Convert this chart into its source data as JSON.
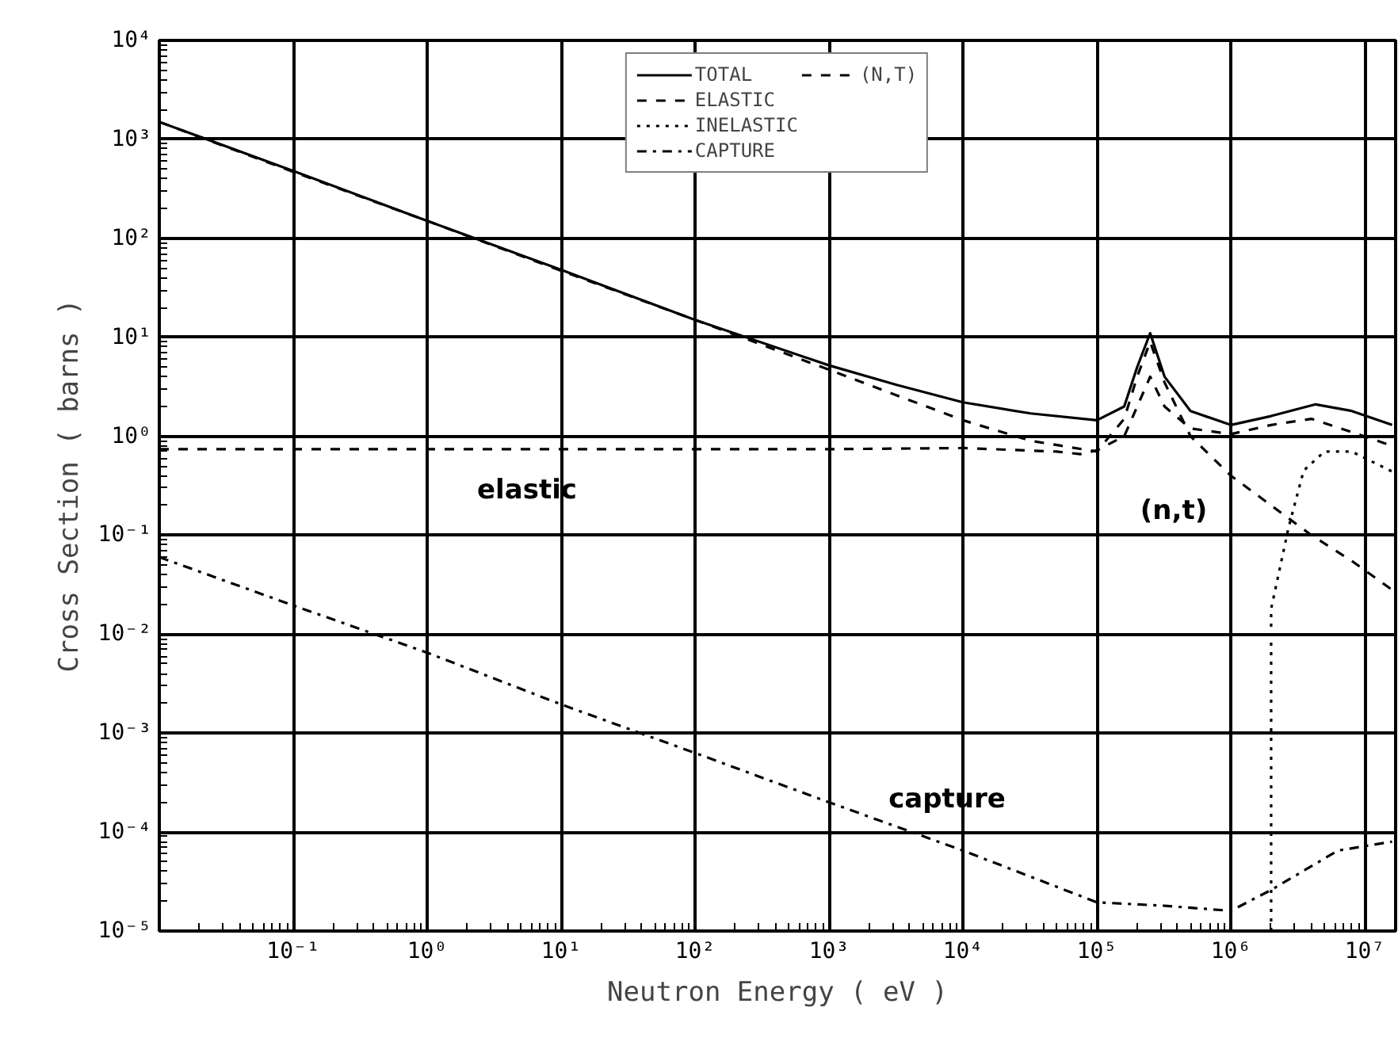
{
  "chart_data": {
    "type": "line",
    "xlabel": "Neutron Energy ( eV )",
    "ylabel": "Cross Section ( barns )",
    "log": "xy",
    "grid": true,
    "legend": "top",
    "xlim": [
      0.01,
      17000000
    ],
    "ylim": [
      1e-05,
      10000
    ],
    "xticks": [
      {
        "value": 0.1,
        "label": "10⁻¹"
      },
      {
        "value": 1,
        "label": "10⁰"
      },
      {
        "value": 10,
        "label": "10¹"
      },
      {
        "value": 100,
        "label": "10²"
      },
      {
        "value": 1000,
        "label": "10³"
      },
      {
        "value": 10000,
        "label": "10⁴"
      },
      {
        "value": 100000,
        "label": "10⁵"
      },
      {
        "value": 1000000,
        "label": "10⁶"
      },
      {
        "value": 10000000,
        "label": "10⁷"
      }
    ],
    "yticks": [
      {
        "value": 1e-05,
        "label": "10⁻⁵"
      },
      {
        "value": 0.0001,
        "label": "10⁻⁴"
      },
      {
        "value": 0.001,
        "label": "10⁻³"
      },
      {
        "value": 0.01,
        "label": "10⁻²"
      },
      {
        "value": 0.1,
        "label": "10⁻¹"
      },
      {
        "value": 1,
        "label": "10⁰"
      },
      {
        "value": 10,
        "label": "10¹"
      },
      {
        "value": 100,
        "label": "10²"
      },
      {
        "value": 1000,
        "label": "10³"
      },
      {
        "value": 10000,
        "label": "10⁴"
      }
    ],
    "series": [
      {
        "name": "TOTAL",
        "color": "#000000",
        "line_style": "solid",
        "x": [
          0.01,
          0.1,
          1,
          10,
          100,
          1000,
          3200,
          10000,
          32000,
          100000,
          160000,
          200000,
          250000,
          320000,
          500000,
          1000000,
          2000000,
          4300000,
          8000000,
          16000000
        ],
        "values": [
          1500,
          480,
          150,
          48,
          15,
          5.2,
          3.3,
          2.2,
          1.7,
          1.45,
          2.0,
          5.0,
          11,
          4.0,
          1.8,
          1.3,
          1.6,
          2.1,
          1.8,
          1.3
        ]
      },
      {
        "name": "ELASTIC",
        "color": "#000000",
        "line_style": "dashed",
        "x": [
          0.01,
          1000,
          10000,
          50000,
          75000,
          100000,
          160000,
          200000,
          250000,
          320000,
          500000,
          1000000,
          2000000,
          4000000,
          8000000,
          16000000
        ],
        "values": [
          0.74,
          0.74,
          0.76,
          0.7,
          0.66,
          0.72,
          1.0,
          2.0,
          4.0,
          2.0,
          1.2,
          1.05,
          1.3,
          1.5,
          1.1,
          0.8
        ]
      },
      {
        "name": "INELASTIC",
        "color": "#000000",
        "line_style": "dotted",
        "x": [
          2000000,
          2000000,
          2700000,
          3500000,
          5000000,
          8000000,
          16000000
        ],
        "values": [
          1e-05,
          0.018,
          0.12,
          0.45,
          0.7,
          0.7,
          0.44
        ]
      },
      {
        "name": "CAPTURE",
        "color": "#000000",
        "line_style": "dashdot",
        "x": [
          0.01,
          0.1,
          1,
          10,
          100,
          1000,
          10000,
          100000,
          320000,
          1000000,
          2000000,
          6300000,
          16000000
        ],
        "values": [
          0.06,
          0.0195,
          0.0065,
          0.00195,
          0.00063,
          0.0002,
          6.5e-05,
          1.95e-05,
          1.8e-05,
          1.6e-05,
          2.6e-05,
          6.5e-05,
          8e-05
        ]
      },
      {
        "name": "(N,T)",
        "color": "#000000",
        "line_style": "dashed",
        "x": [
          0.01,
          0.1,
          1,
          10,
          100,
          1000,
          10000,
          32000,
          100000,
          160000,
          200000,
          250000,
          320000,
          500000,
          1000000,
          2000000,
          4000000,
          8000000,
          16000000
        ],
        "values": [
          1500,
          470,
          150,
          47,
          15,
          4.7,
          1.45,
          0.9,
          0.7,
          1.5,
          4,
          9,
          3.5,
          1.0,
          0.4,
          0.2,
          0.1,
          0.055,
          0.028
        ]
      }
    ],
    "annotations": [
      "elastic",
      "(n,t)",
      "capture"
    ]
  }
}
